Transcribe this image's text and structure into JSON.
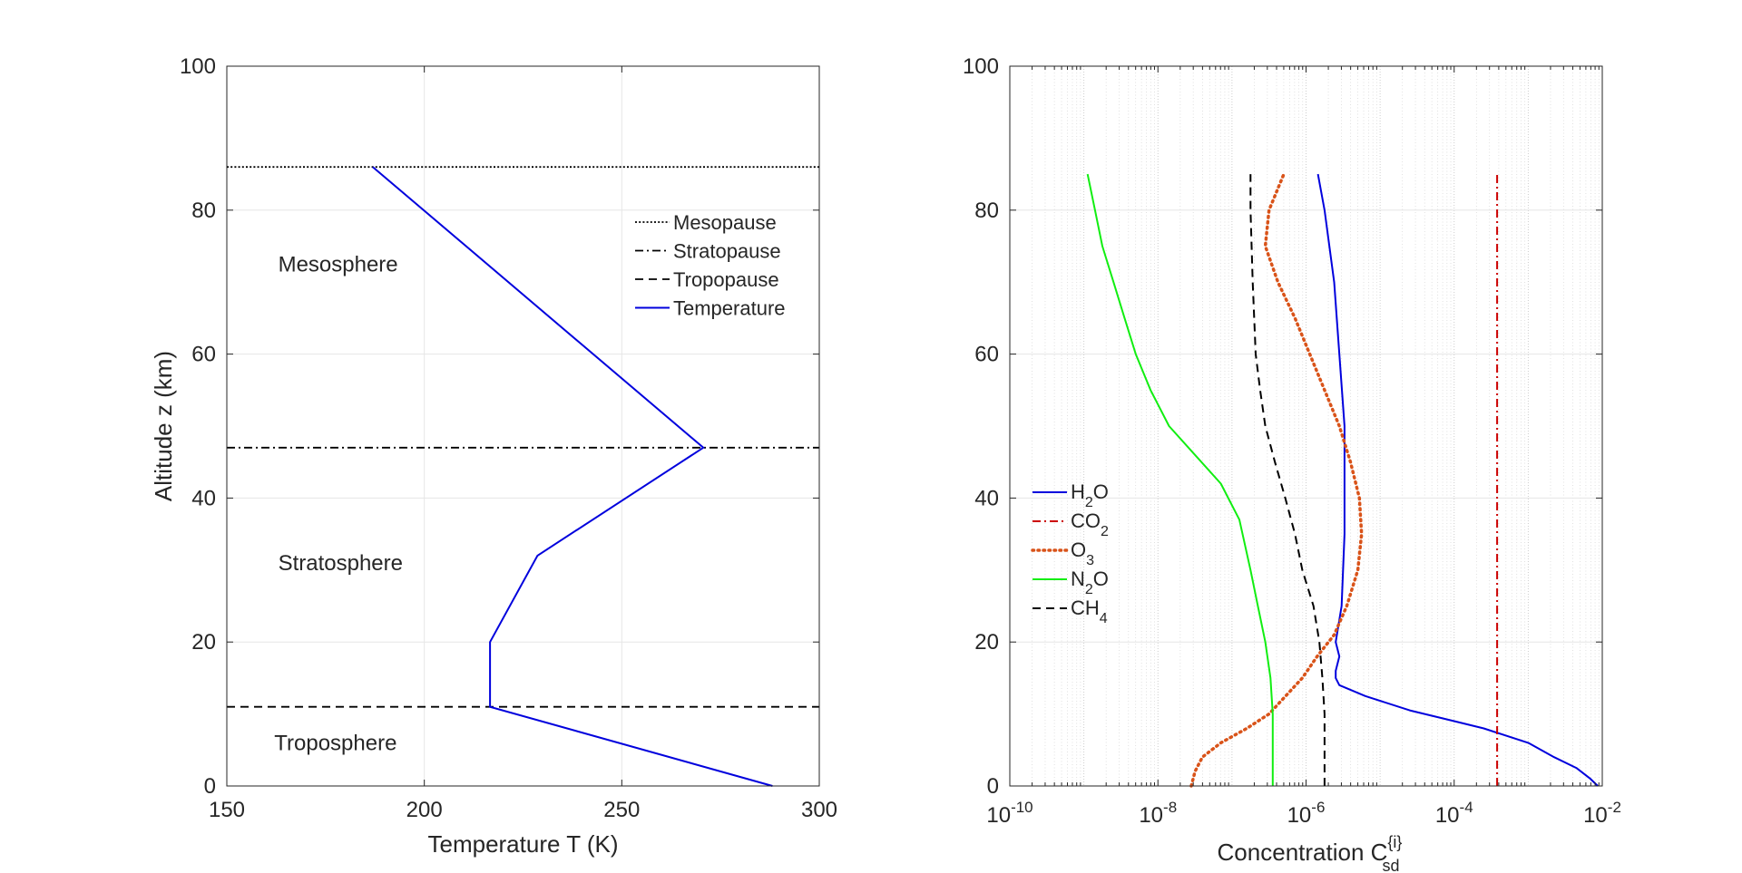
{
  "chart_data": [
    {
      "type": "line",
      "xlabel": "Temperature T (K)",
      "ylabel": "Altitude z (km)",
      "xlim": [
        150,
        300
      ],
      "ylim": [
        0,
        100
      ],
      "xticks": [
        150,
        200,
        250,
        300
      ],
      "yticks": [
        0,
        20,
        40,
        60,
        80,
        100
      ],
      "grid": true,
      "legend_position": "top-right",
      "series": [
        {
          "name": "Mesopause",
          "style": "dotted",
          "color": "#000000",
          "x": [
            150,
            300
          ],
          "y": [
            86,
            86
          ]
        },
        {
          "name": "Stratopause",
          "style": "dashdot",
          "color": "#000000",
          "x": [
            150,
            300
          ],
          "y": [
            47,
            47
          ]
        },
        {
          "name": "Tropopause",
          "style": "dashed",
          "color": "#000000",
          "x": [
            150,
            300
          ],
          "y": [
            11,
            11
          ]
        },
        {
          "name": "Temperature",
          "style": "solid",
          "color": "#0000dd",
          "x": [
            288.15,
            216.65,
            216.65,
            228.65,
            270.65,
            270.65,
            186.95
          ],
          "y": [
            0,
            11,
            20,
            32,
            47,
            47,
            86
          ]
        }
      ],
      "annotations": [
        {
          "text": "Mesosphere",
          "x": 163,
          "y": 71.5
        },
        {
          "text": "Stratosphere",
          "x": 163,
          "y": 30
        },
        {
          "text": "Troposphere",
          "x": 162,
          "y": 5
        }
      ]
    },
    {
      "type": "line",
      "xscale": "log",
      "xlabel": "Concentration C",
      "xlabel_superscript": "{i}",
      "xlabel_subscript": "sd",
      "ylabel": "",
      "xlim": [
        -10,
        -2
      ],
      "ylim": [
        0,
        100
      ],
      "xticks": [
        -10,
        -8,
        -6,
        -4,
        -2
      ],
      "xticklabels": [
        {
          "base": "10",
          "exp": "-10"
        },
        {
          "base": "10",
          "exp": "-8"
        },
        {
          "base": "10",
          "exp": "-6"
        },
        {
          "base": "10",
          "exp": "-4"
        },
        {
          "base": "10",
          "exp": "-2"
        }
      ],
      "yticks": [
        0,
        20,
        40,
        60,
        80,
        100
      ],
      "grid": true,
      "legend_position": "center-left",
      "series": [
        {
          "name": "H2O",
          "label_main": "H",
          "label_sub": "2",
          "label_tail": "O",
          "style": "solid",
          "color": "#0000dd",
          "log10x": [
            -2.06,
            -2.16,
            -2.35,
            -2.65,
            -3.0,
            -3.6,
            -4.0,
            -4.6,
            -5.2,
            -5.55,
            -5.6,
            -5.6,
            -5.55,
            -5.6,
            -5.52,
            -5.48,
            -5.48,
            -5.48,
            -5.55,
            -5.62,
            -5.75,
            -5.84
          ],
          "y": [
            0,
            1,
            2.5,
            4,
            6,
            8,
            9,
            10.5,
            12.5,
            14,
            15,
            16,
            18,
            20,
            25,
            35,
            45,
            50,
            60,
            70,
            80,
            85
          ]
        },
        {
          "name": "CO2",
          "label_main": "CO",
          "label_sub": "2",
          "label_tail": "",
          "style": "dashdot",
          "color": "#cc0000",
          "log10x": [
            -3.42,
            -3.42
          ],
          "y": [
            0,
            85
          ]
        },
        {
          "name": "O3",
          "label_main": "O",
          "label_sub": "3",
          "label_tail": "",
          "style": "dotted",
          "color": "#d95319",
          "log10x": [
            -7.55,
            -7.5,
            -7.4,
            -7.15,
            -6.8,
            -6.5,
            -6.05,
            -5.85,
            -5.62,
            -5.45,
            -5.3,
            -5.25,
            -5.28,
            -5.4,
            -5.55,
            -5.75,
            -5.95,
            -6.15,
            -6.38,
            -6.55,
            -6.5,
            -6.3
          ],
          "y": [
            0,
            2,
            4,
            6,
            8,
            10,
            15,
            18,
            21,
            25,
            30,
            35,
            40,
            45,
            50,
            55,
            60,
            65,
            70,
            75,
            80,
            85
          ]
        },
        {
          "name": "N2O",
          "label_main": "N",
          "label_sub": "2",
          "label_tail": "O",
          "style": "solid",
          "color": "#11ee11",
          "log10x": [
            -6.45,
            -6.45,
            -6.48,
            -6.55,
            -6.65,
            -6.75,
            -6.9,
            -7.15,
            -7.5,
            -7.85,
            -8.1,
            -8.3,
            -8.45,
            -8.6,
            -8.75,
            -8.85,
            -8.95
          ],
          "y": [
            0,
            10,
            15,
            20,
            25,
            30,
            37,
            42,
            46,
            50,
            55,
            60,
            65,
            70,
            75,
            80,
            85
          ]
        },
        {
          "name": "CH4",
          "label_main": "CH",
          "label_sub": "4",
          "label_tail": "",
          "style": "dashed",
          "color": "#000000",
          "log10x": [
            -5.75,
            -5.75,
            -5.78,
            -5.82,
            -5.9,
            -6.05,
            -6.15,
            -6.28,
            -6.42,
            -6.55,
            -6.62,
            -6.68,
            -6.72,
            -6.75,
            -6.75
          ],
          "y": [
            0,
            10,
            15,
            20,
            25,
            30,
            35,
            40,
            45,
            50,
            55,
            60,
            70,
            80,
            85
          ]
        }
      ]
    }
  ]
}
